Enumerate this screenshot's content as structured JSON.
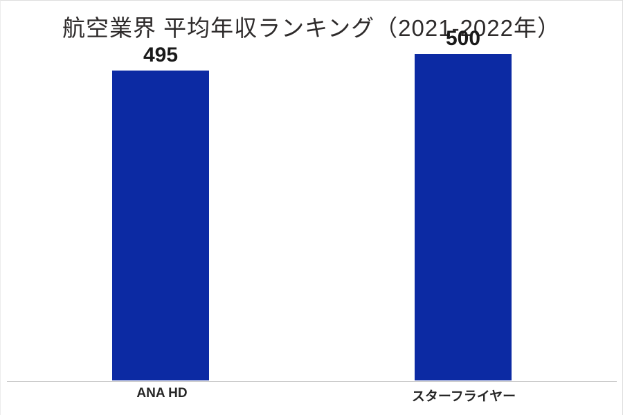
{
  "chart_data": {
    "type": "bar",
    "title": "航空業界 平均年収ランキング（2021-2022年）",
    "categories": [
      "ANA HD",
      "スターフライヤー"
    ],
    "values": [
      495,
      500
    ],
    "xlabel": "",
    "ylabel": "",
    "ylim": [
      400,
      510
    ],
    "grid": false,
    "legend": false,
    "axis_labels_visible": false,
    "data_labels_visible": true,
    "bar_color": "#0c2aa3"
  },
  "colors": {
    "background": "#ffffff",
    "bar": "#0c2aa3",
    "title_text": "#2e2b2b",
    "value_label_text": "#1a1a1a",
    "category_label_text": "#262626",
    "axis_line": "#c9c9c9"
  }
}
